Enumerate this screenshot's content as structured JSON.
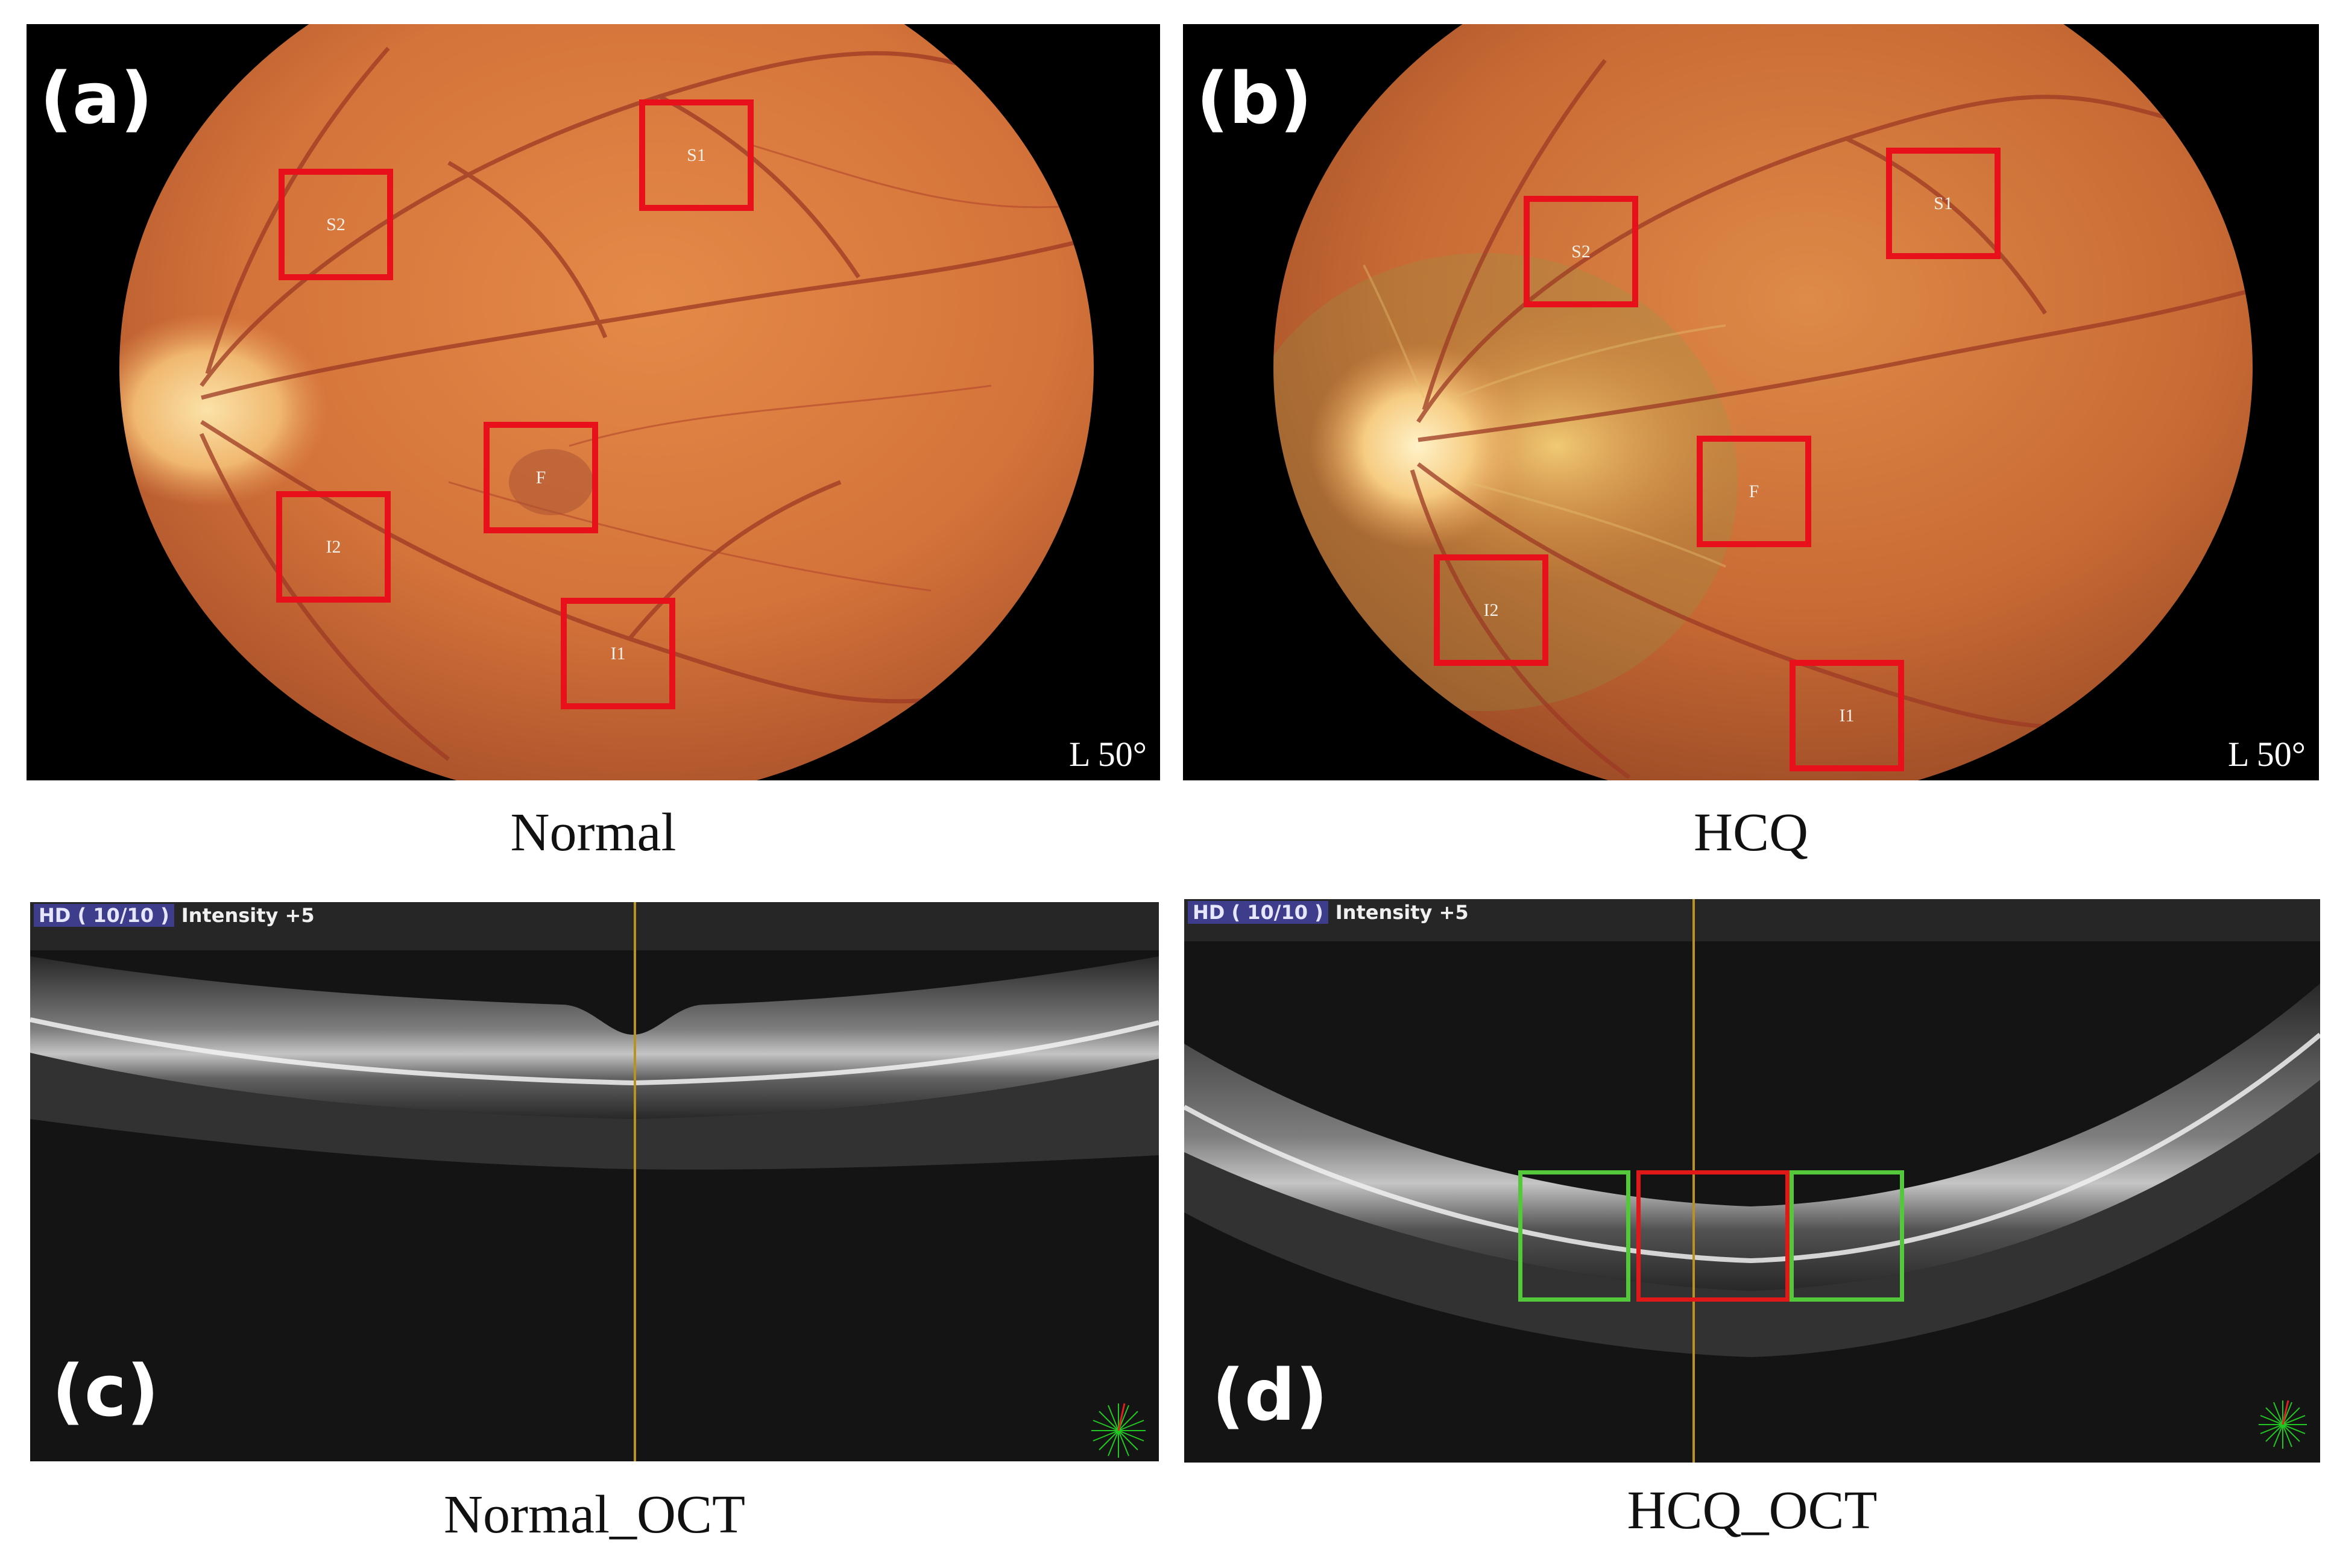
{
  "panels": {
    "a": {
      "letter": "(a)",
      "fov": "L  50°",
      "caption": "Normal",
      "rois": [
        "S1",
        "S2",
        "F",
        "I2",
        "I1"
      ]
    },
    "b": {
      "letter": "(b)",
      "fov": "L  50°",
      "caption": "HCQ",
      "rois": [
        "S1",
        "S2",
        "F",
        "I2",
        "I1"
      ]
    },
    "c": {
      "letter": "(c)",
      "hd_label": "HD ( 10/10 )",
      "intensity_label": "Intensity +5",
      "caption": "Normal_OCT"
    },
    "d": {
      "letter": "(d)",
      "hd_label": "HD ( 10/10 )",
      "intensity_label": "Intensity +5",
      "caption": "HCQ_OCT"
    }
  },
  "colors": {
    "roi_red": "#e8101a",
    "roi_green": "#52c83a",
    "fundus_orange": "#d9743a",
    "oct_background": "#141414",
    "scan_line": "#b8941e"
  }
}
